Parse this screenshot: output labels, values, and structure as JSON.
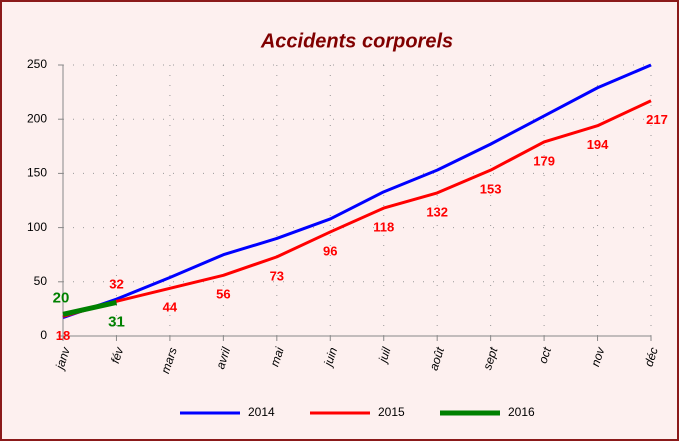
{
  "chart_data": {
    "type": "line",
    "title": "Accidents corporels",
    "categories": [
      "janv",
      "fév",
      "mars",
      "avril",
      "mai",
      "juin",
      "juil",
      "août",
      "sept",
      "oct",
      "nov",
      "déc"
    ],
    "series": [
      {
        "name": "2014",
        "color": "#0000ff",
        "data_labels": false,
        "values": [
          17,
          34,
          54,
          75,
          90,
          108,
          133,
          153,
          177,
          203,
          229,
          250
        ]
      },
      {
        "name": "2015",
        "color": "#ff0000",
        "data_labels": true,
        "values": [
          18,
          32,
          44,
          56,
          73,
          96,
          118,
          132,
          153,
          179,
          194,
          217
        ]
      },
      {
        "name": "2016",
        "color": "#008000",
        "data_labels": true,
        "values": [
          20,
          31,
          null,
          null,
          null,
          null,
          null,
          null,
          null,
          null,
          null,
          null
        ]
      }
    ],
    "ylim": [
      0,
      250
    ],
    "yticks": [
      0,
      50,
      100,
      150,
      200,
      250
    ],
    "grid": true,
    "legend": "bottom"
  }
}
